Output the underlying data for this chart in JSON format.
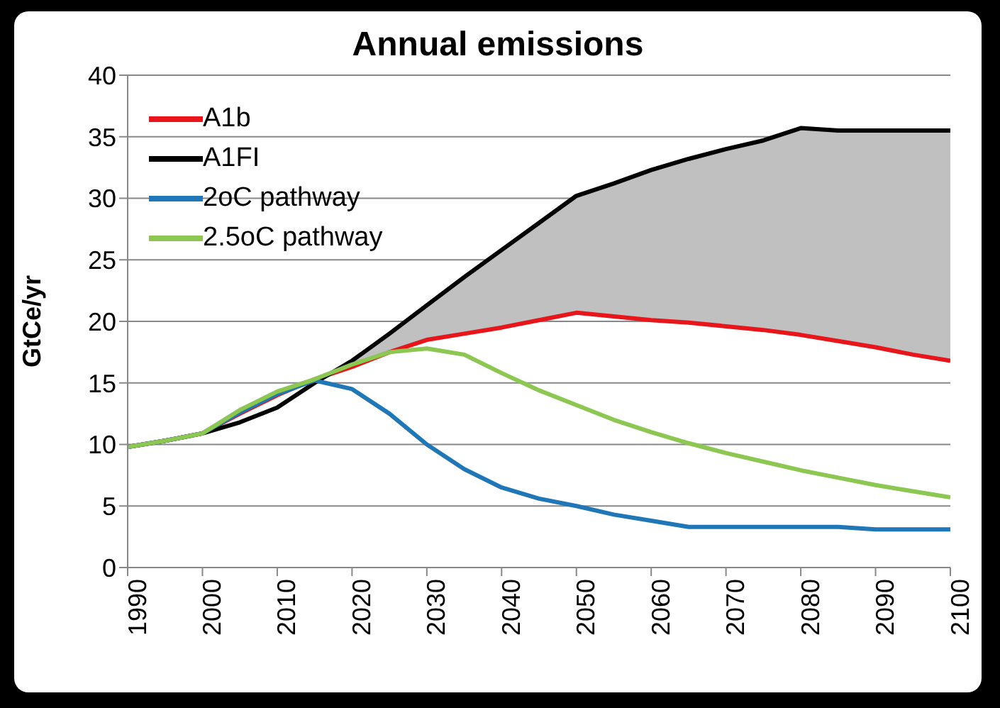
{
  "chart_data": {
    "type": "line",
    "title": "Annual emissions",
    "ylabel": "GtCe/yr",
    "x": [
      1990,
      1995,
      2000,
      2005,
      2010,
      2015,
      2020,
      2025,
      2030,
      2035,
      2040,
      2045,
      2050,
      2055,
      2060,
      2065,
      2070,
      2075,
      2080,
      2085,
      2090,
      2095,
      2100
    ],
    "xlim": [
      1990,
      2100
    ],
    "xticks": [
      1990,
      2000,
      2010,
      2020,
      2030,
      2040,
      2050,
      2060,
      2070,
      2080,
      2090,
      2100
    ],
    "ylim": [
      0,
      40
    ],
    "yticks": [
      0,
      5,
      10,
      15,
      20,
      25,
      30,
      35,
      40
    ],
    "grid": "y",
    "legend": "top left",
    "marker": "none",
    "line_style": "solid",
    "series": [
      {
        "name": "A1b",
        "color": "#e8161b",
        "values": [
          9.8,
          10.3,
          10.9,
          12.5,
          14.0,
          15.3,
          16.3,
          17.5,
          18.5,
          19.0,
          19.5,
          20.1,
          20.7,
          20.4,
          20.1,
          19.9,
          19.6,
          19.3,
          18.9,
          18.4,
          17.9,
          17.3,
          16.8
        ]
      },
      {
        "name": "A1FI",
        "color": "#000000",
        "values": [
          9.8,
          10.3,
          10.9,
          11.8,
          13.0,
          15.0,
          16.8,
          19.0,
          21.3,
          23.6,
          25.8,
          28.0,
          30.2,
          31.2,
          32.3,
          33.2,
          34.0,
          34.7,
          35.7,
          35.5,
          35.5,
          35.5,
          35.5
        ],
        "lower": [
          null,
          null,
          null,
          null,
          null,
          null,
          16.3,
          17.5,
          18.5,
          19.0,
          19.5,
          20.1,
          20.7,
          20.4,
          20.1,
          19.9,
          19.6,
          19.3,
          18.9,
          18.4,
          17.9,
          17.3,
          16.8
        ],
        "upper": [
          null,
          null,
          null,
          null,
          null,
          null,
          16.8,
          19.0,
          21.3,
          23.6,
          25.8,
          28.0,
          30.2,
          31.2,
          32.3,
          33.2,
          34.0,
          34.7,
          35.7,
          35.5,
          35.5,
          35.5,
          35.5
        ]
      },
      {
        "name": "2oC pathway",
        "color": "#1f77b8",
        "values": [
          9.8,
          10.3,
          10.9,
          12.6,
          14.1,
          15.2,
          14.5,
          12.5,
          10.0,
          8.0,
          6.5,
          5.6,
          5.0,
          4.3,
          3.8,
          3.3,
          3.3,
          3.3,
          3.3,
          3.3,
          3.1,
          3.1,
          3.1
        ]
      },
      {
        "name": "2.5oC pathway",
        "color": "#8cc751",
        "values": [
          9.8,
          10.3,
          10.9,
          12.8,
          14.3,
          15.3,
          16.5,
          17.5,
          17.8,
          17.3,
          15.8,
          14.4,
          13.2,
          12.0,
          11.0,
          10.1,
          9.3,
          8.6,
          7.9,
          7.3,
          6.7,
          6.2,
          5.7
        ]
      }
    ]
  }
}
